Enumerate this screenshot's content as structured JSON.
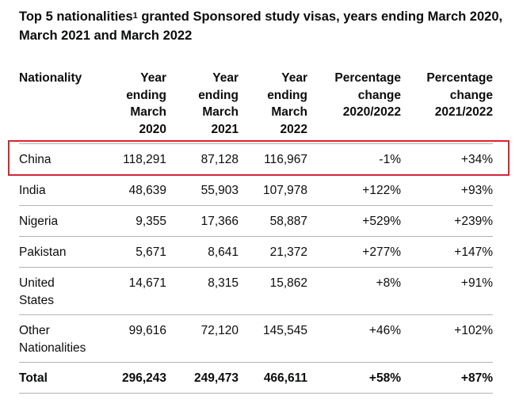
{
  "title": {
    "text_before": "Top 5 nationalities",
    "sup": "1",
    "text_after": " granted Sponsored study visas, years ending March 2020, March 2021 and March 2022"
  },
  "table": {
    "headers": [
      [
        "Nationality"
      ],
      [
        "Year",
        "ending",
        "March",
        "2020"
      ],
      [
        "Year",
        "ending",
        "March",
        "2021"
      ],
      [
        "Year",
        "ending",
        "March",
        "2022"
      ],
      [
        "Percentage",
        "change",
        "2020/2022"
      ],
      [
        "Percentage",
        "change",
        "2021/2022"
      ]
    ],
    "rows": [
      {
        "nationality": [
          "China"
        ],
        "y2020": "118,291",
        "y2021": "87,128",
        "y2022": "116,967",
        "pct_2020_2022": "-1%",
        "pct_2021_2022": "+34%"
      },
      {
        "nationality": [
          "India"
        ],
        "y2020": "48,639",
        "y2021": "55,903",
        "y2022": "107,978",
        "pct_2020_2022": "+122%",
        "pct_2021_2022": "+93%"
      },
      {
        "nationality": [
          "Nigeria"
        ],
        "y2020": "9,355",
        "y2021": "17,366",
        "y2022": "58,887",
        "pct_2020_2022": "+529%",
        "pct_2021_2022": "+239%"
      },
      {
        "nationality": [
          "Pakistan"
        ],
        "y2020": "5,671",
        "y2021": "8,641",
        "y2022": "21,372",
        "pct_2020_2022": "+277%",
        "pct_2021_2022": "+147%"
      },
      {
        "nationality": [
          "United",
          "States"
        ],
        "y2020": "14,671",
        "y2021": "8,315",
        "y2022": "15,862",
        "pct_2020_2022": "+8%",
        "pct_2021_2022": "+91%"
      },
      {
        "nationality": [
          "Other",
          "Nationalities"
        ],
        "y2020": "99,616",
        "y2021": "72,120",
        "y2022": "145,545",
        "pct_2020_2022": "+46%",
        "pct_2021_2022": "+102%"
      }
    ],
    "total": {
      "nationality": [
        "Total"
      ],
      "y2020": "296,243",
      "y2021": "249,473",
      "y2022": "466,611",
      "pct_2020_2022": "+58%",
      "pct_2021_2022": "+87%"
    }
  },
  "highlight": {
    "row": "China",
    "color": "#d6282b"
  }
}
